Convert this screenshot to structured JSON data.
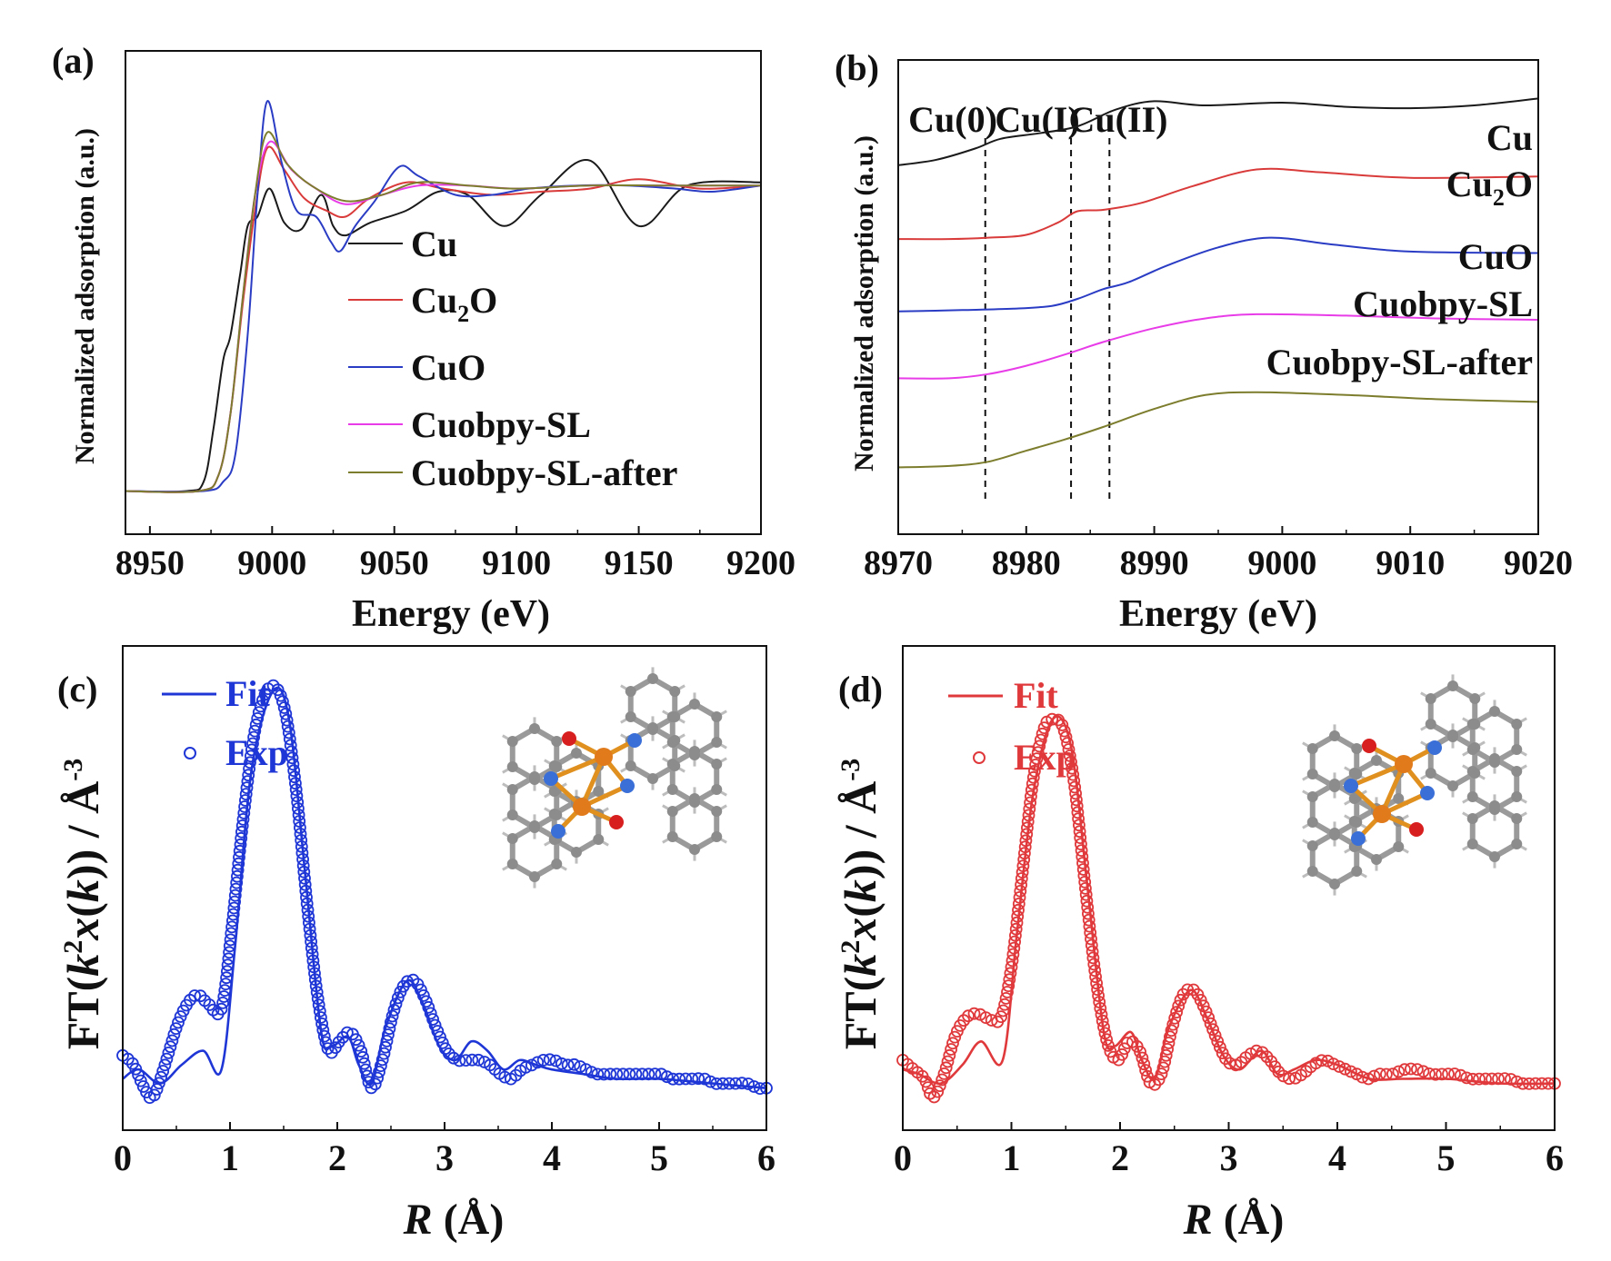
{
  "figure": {
    "colors": {
      "Cu": "#1a1a1a",
      "Cu2O": "#d93a3a",
      "CuO": "#2a3cc4",
      "CuobpySL": "#e83ce8",
      "CuobpySLafter": "#7d7d2e",
      "fit_c": "#1f36d6",
      "fit_d": "#e0393c",
      "atom_C": "#8c8c8c",
      "atom_N": "#3a6fd8",
      "atom_O": "#d81f1f",
      "atom_Cu": "#e07a1a",
      "bond_Cu": "#e0901f"
    },
    "panel_labels": {
      "a": "(a)",
      "b": "(b)",
      "c": "(c)",
      "d": "(d)"
    },
    "structure_insets": [
      {
        "panel": "c",
        "icon": "cuobpy-dimer-structure-icon"
      },
      {
        "panel": "d",
        "icon": "cuobpy-dimer-structure-icon"
      }
    ]
  },
  "chart_data": [
    {
      "panel": "a",
      "type": "line",
      "title": "",
      "xlabel": "Energy (eV)",
      "ylabel": "Normalized adsorption (a.u.)",
      "xlim": [
        8940,
        9200
      ],
      "ylim": [
        -0.15,
        1.4
      ],
      "xticks": [
        8950,
        9000,
        9050,
        9100,
        9150,
        9200
      ],
      "xtick_labels": [
        "8950",
        "9000",
        "9050",
        "9100",
        "9150",
        "9200"
      ],
      "legend": [
        "Cu",
        "Cu2O",
        "CuO",
        "Cuobpy-SL",
        "Cuobpy-SL-after"
      ],
      "legend_position": "center-right",
      "series": [
        {
          "name": "Cu",
          "color_key": "Cu",
          "x": [
            8940,
            8965,
            8972,
            8976,
            8980,
            8983,
            8987,
            8990,
            8994,
            8999,
            9005,
            9012,
            9020,
            9025,
            9030,
            9040,
            9055,
            9068,
            9080,
            9095,
            9110,
            9130,
            9150,
            9170,
            9200
          ],
          "y": [
            0,
            0,
            0.03,
            0.2,
            0.42,
            0.5,
            0.7,
            0.85,
            0.88,
            0.97,
            0.86,
            0.84,
            0.95,
            0.85,
            0.82,
            0.86,
            0.9,
            0.96,
            0.95,
            0.85,
            0.95,
            1.06,
            0.85,
            0.98,
            0.99
          ]
        },
        {
          "name": "Cu2O",
          "color_key": "Cu2O",
          "x": [
            8940,
            8970,
            8978,
            8983,
            8988,
            8993,
            8998,
            9005,
            9013,
            9022,
            9030,
            9040,
            9055,
            9070,
            9090,
            9110,
            9130,
            9150,
            9175,
            9200
          ],
          "y": [
            0,
            0,
            0.05,
            0.25,
            0.6,
            0.9,
            1.1,
            1.03,
            0.94,
            0.9,
            0.88,
            0.94,
            0.99,
            0.97,
            0.95,
            0.96,
            0.97,
            1.0,
            0.97,
            0.98
          ]
        },
        {
          "name": "CuO",
          "color_key": "CuO",
          "x": [
            8940,
            8972,
            8980,
            8985,
            8990,
            8994,
            8998,
            9004,
            9010,
            9018,
            9024,
            9028,
            9034,
            9042,
            9052,
            9060,
            9075,
            9090,
            9105,
            9125,
            9145,
            9165,
            9180,
            9200
          ],
          "y": [
            0,
            0,
            0.03,
            0.12,
            0.5,
            0.95,
            1.25,
            1.05,
            0.9,
            0.88,
            0.8,
            0.77,
            0.85,
            0.93,
            1.04,
            1.01,
            0.95,
            0.95,
            0.97,
            0.98,
            0.98,
            0.97,
            0.96,
            0.98
          ]
        },
        {
          "name": "Cuobpy-SL",
          "color_key": "CuobpySL",
          "x": [
            8940,
            8970,
            8978,
            8983,
            8988,
            8993,
            8999,
            9008,
            9018,
            9030,
            9045,
            9060,
            9080,
            9100,
            9130,
            9160,
            9200
          ],
          "y": [
            0,
            0,
            0.05,
            0.25,
            0.62,
            0.95,
            1.12,
            1.03,
            0.97,
            0.92,
            0.95,
            0.98,
            0.98,
            0.97,
            0.98,
            0.98,
            0.98
          ]
        },
        {
          "name": "Cuobpy-SL-after",
          "color_key": "CuobpySLafter",
          "x": [
            8940,
            8970,
            8978,
            8983,
            8988,
            8993,
            8998,
            9006,
            9016,
            9030,
            9045,
            9060,
            9080,
            9100,
            9130,
            9160,
            9200
          ],
          "y": [
            0,
            0,
            0.05,
            0.25,
            0.62,
            0.95,
            1.15,
            1.05,
            0.98,
            0.93,
            0.95,
            0.99,
            0.98,
            0.97,
            0.98,
            0.98,
            0.98
          ]
        }
      ]
    },
    {
      "panel": "b",
      "type": "line",
      "title": "",
      "xlabel": "Energy (eV)",
      "ylabel": "Normalized adsorption (a.u.)",
      "xlim": [
        8970,
        9020
      ],
      "ylim": [
        -0.4,
        3.0
      ],
      "xticks": [
        8970,
        8980,
        8990,
        9000,
        9010,
        9020
      ],
      "xtick_labels": [
        "8970",
        "8980",
        "8990",
        "9000",
        "9010",
        "9020"
      ],
      "reference_lines": [
        {
          "label": "Cu(0)",
          "x": 8976.8
        },
        {
          "label": "Cu(I)",
          "x": 8983.5
        },
        {
          "label": "Cu(II)",
          "x": 8986.5
        }
      ],
      "legend": [
        "Cu",
        "Cu2O",
        "CuO",
        "Cuobpy-SL",
        "Cuobpy-SL-after"
      ],
      "legend_position": "inline-right",
      "series": [
        {
          "name": "Cu",
          "color_key": "Cu",
          "x": [
            8970,
            8973,
            8976,
            8978,
            8981,
            8984,
            8987,
            8990,
            8994,
            9000,
            9005,
            9010,
            9015,
            9020
          ],
          "y": [
            2.25,
            2.29,
            2.37,
            2.44,
            2.48,
            2.53,
            2.65,
            2.71,
            2.68,
            2.7,
            2.67,
            2.66,
            2.68,
            2.73
          ]
        },
        {
          "name": "Cu2O",
          "color_key": "Cu2O",
          "x": [
            8970,
            8974,
            8977,
            8980,
            8982.5,
            8984,
            8986,
            8989,
            8993,
            8998,
            9003,
            9010,
            9020
          ],
          "y": [
            1.72,
            1.72,
            1.73,
            1.75,
            1.84,
            1.92,
            1.93,
            1.98,
            2.1,
            2.22,
            2.2,
            2.16,
            2.17
          ]
        },
        {
          "name": "CuO",
          "color_key": "CuO",
          "x": [
            8970,
            8975,
            8979,
            8982,
            8984,
            8986,
            8988,
            8991,
            8995,
            8999,
            9004,
            9010,
            9020
          ],
          "y": [
            1.2,
            1.21,
            1.22,
            1.24,
            1.29,
            1.36,
            1.41,
            1.53,
            1.66,
            1.73,
            1.68,
            1.63,
            1.62
          ]
        },
        {
          "name": "Cuobpy-SL",
          "color_key": "CuobpySL",
          "x": [
            8970,
            8974,
            8977,
            8980,
            8983,
            8986,
            8990,
            8994,
            8998,
            9005,
            9012,
            9020
          ],
          "y": [
            0.72,
            0.72,
            0.75,
            0.81,
            0.89,
            0.98,
            1.08,
            1.15,
            1.18,
            1.17,
            1.15,
            1.14
          ]
        },
        {
          "name": "Cuobpy-SL-after",
          "color_key": "CuobpySLafter",
          "x": [
            8970,
            8974,
            8977,
            8980,
            8983,
            8986,
            8990,
            8994,
            8998,
            9005,
            9012,
            9020
          ],
          "y": [
            0.08,
            0.09,
            0.12,
            0.2,
            0.28,
            0.37,
            0.5,
            0.6,
            0.62,
            0.6,
            0.57,
            0.55
          ]
        }
      ]
    },
    {
      "panel": "c",
      "type": "line",
      "title": "",
      "xlabel": "R (Å)",
      "ylabel": "FT(k2x(k)) / Å-3",
      "xlim": [
        0,
        6
      ],
      "ylim": [
        0,
        1
      ],
      "xticks": [
        0,
        1,
        2,
        3,
        4,
        5,
        6
      ],
      "xtick_labels": [
        "0",
        "1",
        "2",
        "3",
        "4",
        "5",
        "6"
      ],
      "legend": [
        "Fit",
        "Exp"
      ],
      "legend_position": "top-left",
      "series": [
        {
          "name": "Fit",
          "color_key": "fit_c",
          "style": "line",
          "x": [
            0,
            0.15,
            0.35,
            0.55,
            0.75,
            0.92,
            1.05,
            1.2,
            1.4,
            1.55,
            1.7,
            1.85,
            1.95,
            2.1,
            2.2,
            2.32,
            2.45,
            2.65,
            2.8,
            2.95,
            3.1,
            3.25,
            3.4,
            3.55,
            3.7,
            3.85,
            4.0,
            4.3,
            4.6,
            5.0,
            5.5,
            6.0
          ],
          "y": [
            0.11,
            0.13,
            0.1,
            0.14,
            0.17,
            0.13,
            0.4,
            0.77,
            0.94,
            0.88,
            0.55,
            0.21,
            0.18,
            0.2,
            0.14,
            0.1,
            0.22,
            0.32,
            0.27,
            0.18,
            0.15,
            0.19,
            0.17,
            0.13,
            0.15,
            0.14,
            0.13,
            0.12,
            0.11,
            0.11,
            0.1,
            0.09
          ]
        },
        {
          "name": "Exp",
          "color_key": "fit_c",
          "style": "markers",
          "x": [
            0,
            0.1,
            0.2,
            0.28,
            0.38,
            0.5,
            0.6,
            0.7,
            0.8,
            0.92,
            1.02,
            1.12,
            1.22,
            1.32,
            1.42,
            1.52,
            1.62,
            1.72,
            1.82,
            1.92,
            2.02,
            2.12,
            2.22,
            2.32,
            2.42,
            2.52,
            2.62,
            2.72,
            2.82,
            2.92,
            3.02,
            3.12,
            3.22,
            3.32,
            3.42,
            3.52,
            3.62,
            3.72,
            3.82,
            3.92,
            4.02,
            4.12,
            4.22,
            4.32,
            4.42,
            4.52,
            4.62,
            4.72,
            4.82,
            4.92,
            5.02,
            5.12,
            5.22,
            5.32,
            5.42,
            5.52,
            5.62,
            5.72,
            5.82,
            5.92,
            6.0
          ],
          "y": [
            0.16,
            0.14,
            0.09,
            0.07,
            0.13,
            0.22,
            0.27,
            0.29,
            0.27,
            0.26,
            0.44,
            0.66,
            0.84,
            0.93,
            0.95,
            0.89,
            0.72,
            0.48,
            0.28,
            0.17,
            0.19,
            0.21,
            0.17,
            0.09,
            0.15,
            0.25,
            0.31,
            0.32,
            0.28,
            0.22,
            0.17,
            0.15,
            0.15,
            0.15,
            0.14,
            0.12,
            0.11,
            0.13,
            0.14,
            0.15,
            0.15,
            0.14,
            0.14,
            0.13,
            0.12,
            0.12,
            0.12,
            0.12,
            0.12,
            0.12,
            0.12,
            0.11,
            0.11,
            0.11,
            0.11,
            0.1,
            0.1,
            0.1,
            0.1,
            0.09,
            0.09
          ]
        }
      ]
    },
    {
      "panel": "d",
      "type": "line",
      "title": "",
      "xlabel": "R (Å)",
      "ylabel": "FT(k2x(k)) / Å-3",
      "xlim": [
        0,
        6
      ],
      "ylim": [
        0,
        1
      ],
      "xticks": [
        0,
        1,
        2,
        3,
        4,
        5,
        6
      ],
      "xtick_labels": [
        "0",
        "1",
        "2",
        "3",
        "4",
        "5",
        "6"
      ],
      "legend": [
        "Fit",
        "Exp"
      ],
      "legend_position": "top-left",
      "series": [
        {
          "name": "Fit",
          "color_key": "fit_d",
          "style": "line",
          "x": [
            0,
            0.15,
            0.35,
            0.55,
            0.72,
            0.92,
            1.05,
            1.2,
            1.38,
            1.55,
            1.7,
            1.85,
            1.95,
            2.1,
            2.2,
            2.32,
            2.45,
            2.65,
            2.8,
            2.95,
            3.1,
            3.3,
            3.45,
            3.6,
            3.8,
            4.0,
            4.3,
            4.6,
            5.0,
            5.5,
            6.0
          ],
          "y": [
            0.13,
            0.12,
            0.1,
            0.14,
            0.19,
            0.15,
            0.42,
            0.72,
            0.88,
            0.82,
            0.52,
            0.21,
            0.18,
            0.21,
            0.15,
            0.11,
            0.22,
            0.3,
            0.24,
            0.16,
            0.13,
            0.17,
            0.12,
            0.13,
            0.15,
            0.14,
            0.11,
            0.11,
            0.11,
            0.1,
            0.1
          ]
        },
        {
          "name": "Exp",
          "color_key": "fit_d",
          "style": "markers",
          "x": [
            0,
            0.1,
            0.2,
            0.28,
            0.38,
            0.48,
            0.58,
            0.68,
            0.78,
            0.9,
            1.0,
            1.1,
            1.2,
            1.3,
            1.38,
            1.48,
            1.58,
            1.68,
            1.78,
            1.88,
            1.98,
            2.08,
            2.18,
            2.28,
            2.38,
            2.48,
            2.58,
            2.68,
            2.78,
            2.88,
            2.98,
            3.08,
            3.18,
            3.28,
            3.38,
            3.48,
            3.58,
            3.68,
            3.78,
            3.88,
            3.98,
            4.08,
            4.18,
            4.28,
            4.38,
            4.5,
            4.62,
            4.74,
            4.86,
            4.98,
            5.1,
            5.22,
            5.34,
            5.46,
            5.58,
            5.7,
            5.82,
            6.0
          ],
          "y": [
            0.15,
            0.13,
            0.11,
            0.07,
            0.12,
            0.2,
            0.24,
            0.25,
            0.24,
            0.24,
            0.35,
            0.55,
            0.75,
            0.86,
            0.88,
            0.86,
            0.74,
            0.52,
            0.32,
            0.19,
            0.15,
            0.19,
            0.17,
            0.1,
            0.12,
            0.22,
            0.29,
            0.3,
            0.26,
            0.2,
            0.15,
            0.14,
            0.16,
            0.17,
            0.15,
            0.12,
            0.11,
            0.12,
            0.14,
            0.15,
            0.14,
            0.13,
            0.12,
            0.11,
            0.12,
            0.12,
            0.13,
            0.13,
            0.12,
            0.12,
            0.12,
            0.11,
            0.11,
            0.11,
            0.11,
            0.1,
            0.1,
            0.1
          ]
        }
      ]
    }
  ]
}
